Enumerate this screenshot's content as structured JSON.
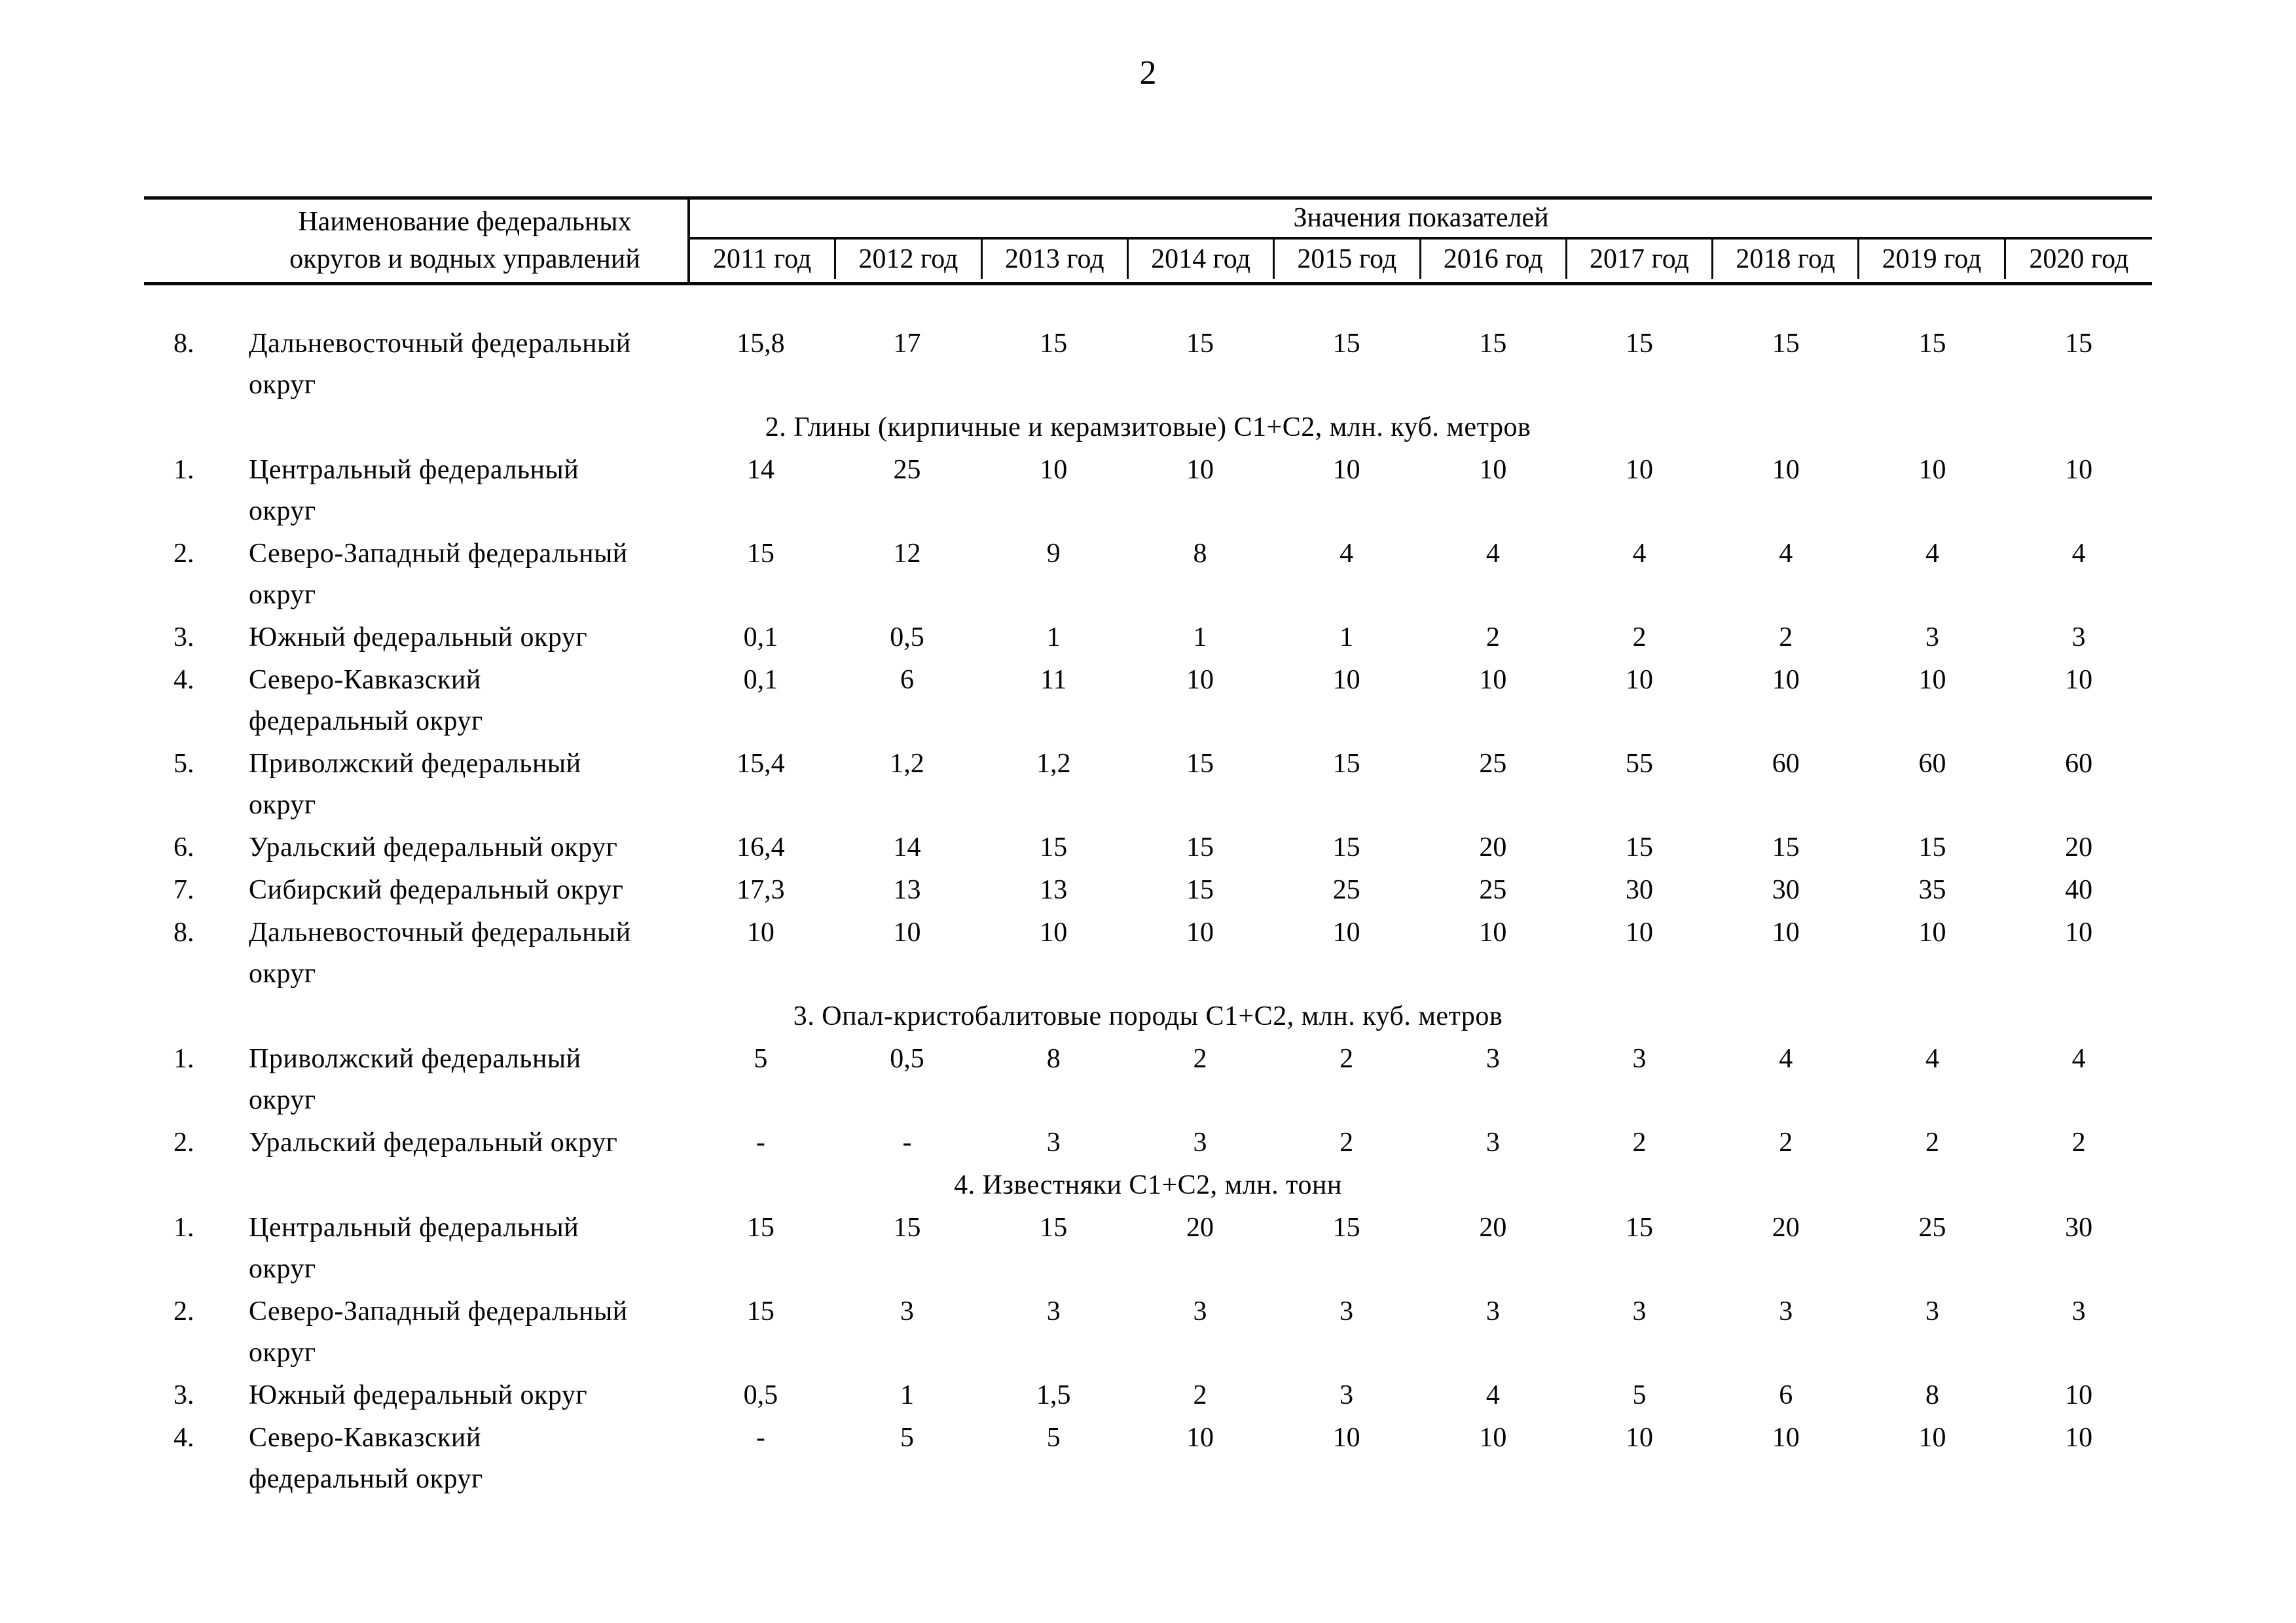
{
  "page": {
    "number": "2"
  },
  "table": {
    "header": {
      "name_col": "Наименование федеральных\nокругов и водных управлений",
      "values_group": "Значения показателей",
      "years": [
        "2011 год",
        "2012 год",
        "2013 год",
        "2014 год",
        "2015 год",
        "2016 год",
        "2017 год",
        "2018 год",
        "2019 год",
        "2020 год"
      ]
    },
    "sections": [
      {
        "heading": "",
        "rows": [
          {
            "num": "8.",
            "name": "Дальневосточный федеральный\nокруг",
            "values": [
              "15,8",
              "17",
              "15",
              "15",
              "15",
              "15",
              "15",
              "15",
              "15",
              "15"
            ]
          }
        ]
      },
      {
        "heading": "2. Глины (кирпичные и керамзитовые) С1+С2, млн. куб. метров",
        "rows": [
          {
            "num": "1.",
            "name": "Центральный федеральный\nокруг",
            "values": [
              "14",
              "25",
              "10",
              "10",
              "10",
              "10",
              "10",
              "10",
              "10",
              "10"
            ]
          },
          {
            "num": "2.",
            "name": "Северо-Западный федеральный\nокруг",
            "values": [
              "15",
              "12",
              "9",
              "8",
              "4",
              "4",
              "4",
              "4",
              "4",
              "4"
            ]
          },
          {
            "num": "3.",
            "name": "Южный федеральный округ",
            "values": [
              "0,1",
              "0,5",
              "1",
              "1",
              "1",
              "2",
              "2",
              "2",
              "3",
              "3"
            ]
          },
          {
            "num": "4.",
            "name": "Северо-Кавказский\nфедеральный округ",
            "values": [
              "0,1",
              "6",
              "11",
              "10",
              "10",
              "10",
              "10",
              "10",
              "10",
              "10"
            ]
          },
          {
            "num": "5.",
            "name": "Приволжский федеральный\nокруг",
            "values": [
              "15,4",
              "1,2",
              "1,2",
              "15",
              "15",
              "25",
              "55",
              "60",
              "60",
              "60"
            ]
          },
          {
            "num": "6.",
            "name": "Уральский федеральный округ",
            "values": [
              "16,4",
              "14",
              "15",
              "15",
              "15",
              "20",
              "15",
              "15",
              "15",
              "20"
            ]
          },
          {
            "num": "7.",
            "name": "Сибирский федеральный округ",
            "values": [
              "17,3",
              "13",
              "13",
              "15",
              "25",
              "25",
              "30",
              "30",
              "35",
              "40"
            ]
          },
          {
            "num": "8.",
            "name": "Дальневосточный федеральный\nокруг",
            "values": [
              "10",
              "10",
              "10",
              "10",
              "10",
              "10",
              "10",
              "10",
              "10",
              "10"
            ]
          }
        ]
      },
      {
        "heading": "3. Опал-кристобалитовые породы С1+С2, млн. куб. метров",
        "rows": [
          {
            "num": "1.",
            "name": "Приволжский федеральный\nокруг",
            "values": [
              "5",
              "0,5",
              "8",
              "2",
              "2",
              "3",
              "3",
              "4",
              "4",
              "4"
            ]
          },
          {
            "num": "2.",
            "name": "Уральский федеральный округ",
            "values": [
              "-",
              "-",
              "3",
              "3",
              "2",
              "3",
              "2",
              "2",
              "2",
              "2"
            ]
          }
        ]
      },
      {
        "heading": "4. Известняки С1+С2, млн. тонн",
        "rows": [
          {
            "num": "1.",
            "name": "Центральный федеральный\nокруг",
            "values": [
              "15",
              "15",
              "15",
              "20",
              "15",
              "20",
              "15",
              "20",
              "25",
              "30"
            ]
          },
          {
            "num": "2.",
            "name": "Северо-Западный федеральный\nокруг",
            "values": [
              "15",
              "3",
              "3",
              "3",
              "3",
              "3",
              "3",
              "3",
              "3",
              "3"
            ]
          },
          {
            "num": "3.",
            "name": "Южный федеральный округ",
            "values": [
              "0,5",
              "1",
              "1,5",
              "2",
              "3",
              "4",
              "5",
              "6",
              "8",
              "10"
            ]
          },
          {
            "num": "4.",
            "name": "Северо-Кавказский\nфедеральный округ",
            "values": [
              "-",
              "5",
              "5",
              "10",
              "10",
              "10",
              "10",
              "10",
              "10",
              "10"
            ]
          }
        ]
      }
    ]
  }
}
